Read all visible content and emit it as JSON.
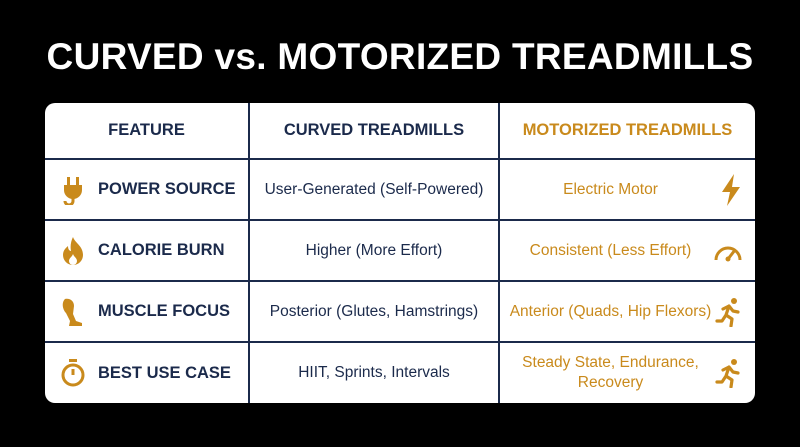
{
  "title": "CURVED vs. MOTORIZED TREADMILLS",
  "table": {
    "header": [
      "FEATURE",
      "CURVED TREADMILLS",
      "MOTORIZED TREADMILLS"
    ],
    "rows": [
      [
        "POWER SOURCE",
        "User-Generated (Self-Powered)",
        "Electric Motor"
      ],
      [
        "CALORIE BURN",
        "Higher (More Effort)",
        "Consistent (Less Effort)"
      ],
      [
        "MUSCLE FOCUS",
        "Posterior (Glutes, Hamstrings)",
        "Anterior (Quads, Hip Flexors)"
      ],
      [
        "BEST USE CASE",
        "HIIT, Sprints, Intervals",
        "Steady State, Endurance, Recovery"
      ]
    ]
  }
}
